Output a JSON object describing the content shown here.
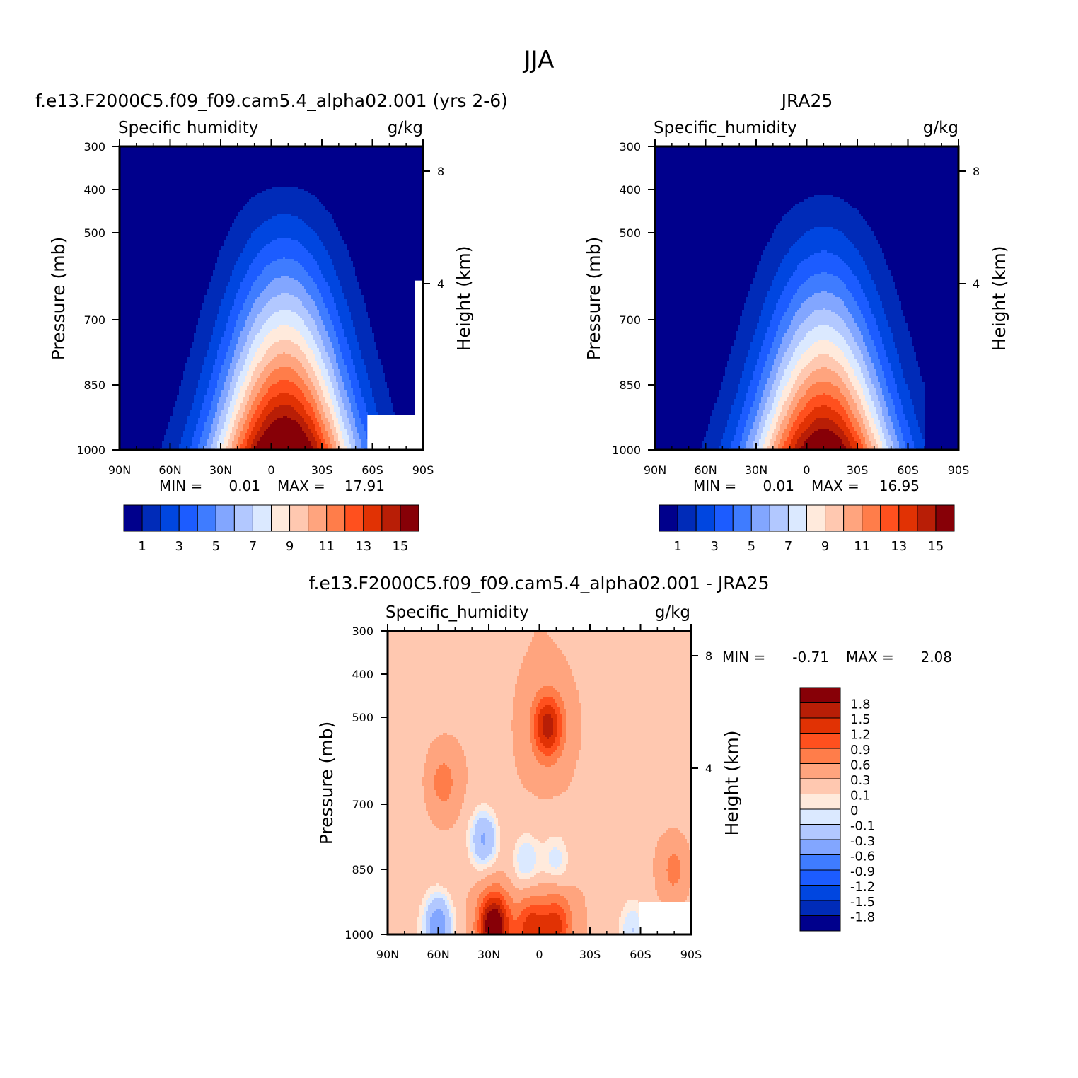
{
  "page": {
    "title": "JJA"
  },
  "palette": {
    "abs": [
      "#00008c",
      "#002bb8",
      "#0046e0",
      "#1c5cff",
      "#3f7cff",
      "#82a6ff",
      "#b2c8ff",
      "#dbe9ff",
      "#ffeadc",
      "#ffc8b0",
      "#ffa47e",
      "#ff7d4a",
      "#ff501e",
      "#e13204",
      "#b81e06",
      "#870007"
    ],
    "diff": [
      "#00008c",
      "#002bb8",
      "#0046e0",
      "#1c5cff",
      "#3f7cff",
      "#82a6ff",
      "#b2c8ff",
      "#dbe9ff",
      "#ffeadc",
      "#ffc8b0",
      "#ffa47e",
      "#ff7d4a",
      "#ff501e",
      "#e13204",
      "#b81e06",
      "#870007"
    ]
  },
  "chart_data": [
    {
      "type": "heatmap",
      "title": "f.e13.F2000C5.f09_f09.cam5.4_alpha02.001 (yrs 2-6)",
      "variable": "Specific humidity",
      "units": "g/kg",
      "ylabel": "Pressure (mb)",
      "y2label": "Height (km)",
      "x_ticks": [
        "90N",
        "60N",
        "30N",
        "0",
        "30S",
        "60S",
        "90S"
      ],
      "x_values": [
        90,
        60,
        30,
        0,
        -30,
        -60,
        -90
      ],
      "y_ticks": [
        "300",
        "400",
        "500",
        "700",
        "850",
        "1000"
      ],
      "y_values": [
        300,
        400,
        500,
        700,
        850,
        1000
      ],
      "y2_ticks": [
        "8",
        "4"
      ],
      "y2_values": [
        8,
        4
      ],
      "min_label": "MIN =",
      "min_value": "0.01",
      "max_label": "MAX =",
      "max_value": "17.91",
      "peak": {
        "lat": -8,
        "value": 17.9
      },
      "colorbar_labels": [
        "1",
        "3",
        "5",
        "7",
        "9",
        "11",
        "13",
        "15"
      ]
    },
    {
      "type": "heatmap",
      "title": "JRA25",
      "variable": "Specific_humidity",
      "units": "g/kg",
      "ylabel": "Pressure (mb)",
      "y2label": "Height (km)",
      "x_ticks": [
        "90N",
        "60N",
        "30N",
        "0",
        "30S",
        "60S",
        "90S"
      ],
      "x_values": [
        90,
        60,
        30,
        0,
        -30,
        -60,
        -90
      ],
      "y_ticks": [
        "300",
        "400",
        "500",
        "700",
        "850",
        "1000"
      ],
      "y_values": [
        300,
        400,
        500,
        700,
        850,
        1000
      ],
      "y2_ticks": [
        "8",
        "4"
      ],
      "y2_values": [
        8,
        4
      ],
      "min_label": "MIN =",
      "min_value": "0.01",
      "max_label": "MAX =",
      "max_value": "16.95",
      "peak": {
        "lat": -10,
        "value": 16.9
      },
      "colorbar_labels": [
        "1",
        "3",
        "5",
        "7",
        "9",
        "11",
        "13",
        "15"
      ]
    },
    {
      "type": "heatmap",
      "title": "f.e13.F2000C5.f09_f09.cam5.4_alpha02.001 - JRA25",
      "variable": "Specific_humidity",
      "units": "g/kg",
      "ylabel": "Pressure (mb)",
      "y2label": "Height (km)",
      "x_ticks": [
        "90N",
        "60N",
        "30N",
        "0",
        "30S",
        "60S",
        "90S"
      ],
      "x_values": [
        90,
        60,
        30,
        0,
        -30,
        -60,
        -90
      ],
      "y_ticks": [
        "300",
        "400",
        "500",
        "700",
        "850",
        "1000"
      ],
      "y_values": [
        300,
        400,
        500,
        700,
        850,
        1000
      ],
      "y2_ticks": [
        "8",
        "4"
      ],
      "y2_values": [
        8,
        4
      ],
      "min_label": "MIN =",
      "min_value": "-0.71",
      "max_label": "MAX =",
      "max_value": "2.08",
      "colorbar_labels": [
        "1.8",
        "1.5",
        "1.2",
        "0.9",
        "0.6",
        "0.3",
        "0.1",
        "0",
        "-0.1",
        "-0.3",
        "-0.6",
        "-0.9",
        "-1.2",
        "-1.5",
        "-1.8"
      ],
      "features": [
        {
          "lat": -5,
          "p": 520,
          "amp": 1.4
        },
        {
          "lat": 27,
          "p": 980,
          "amp": 2.0
        },
        {
          "lat": 5,
          "p": 990,
          "amp": 1.1
        },
        {
          "lat": -10,
          "p": 980,
          "amp": 1.0
        },
        {
          "lat": 57,
          "p": 650,
          "amp": 0.5
        },
        {
          "lat": 33,
          "p": 780,
          "amp": -0.6
        },
        {
          "lat": 8,
          "p": 830,
          "amp": -0.4
        },
        {
          "lat": -10,
          "p": 830,
          "amp": -0.35
        },
        {
          "lat": 60,
          "p": 980,
          "amp": -0.7
        },
        {
          "lat": -55,
          "p": 990,
          "amp": -0.35
        },
        {
          "lat": -80,
          "p": 850,
          "amp": 0.5
        }
      ]
    }
  ]
}
